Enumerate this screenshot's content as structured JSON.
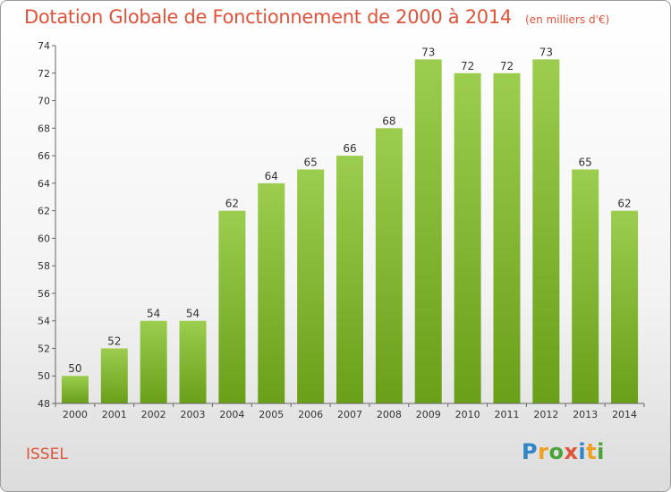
{
  "header": {
    "title": "Dotation Globale de Fonctionnement de 2000 à 2014",
    "unit": "(en milliers d'€)"
  },
  "footer": {
    "commune": "ISSEL",
    "logo_letters": [
      {
        "char": "P",
        "color": "#2e86c8"
      },
      {
        "char": "r",
        "color": "#f0a020"
      },
      {
        "char": "o",
        "color": "#4aa43a"
      },
      {
        "char": "x",
        "color": "#e0533a"
      },
      {
        "char": "i",
        "color": "#2e86c8"
      },
      {
        "char": "t",
        "color": "#f0a020"
      },
      {
        "char": "i",
        "color": "#4aa43a"
      }
    ]
  },
  "chart_data": {
    "type": "bar",
    "categories": [
      "2000",
      "2001",
      "2002",
      "2003",
      "2004",
      "2005",
      "2006",
      "2007",
      "2008",
      "2009",
      "2010",
      "2011",
      "2012",
      "2013",
      "2014"
    ],
    "values": [
      50,
      52,
      54,
      54,
      62,
      64,
      65,
      66,
      68,
      73,
      72,
      72,
      73,
      65,
      62
    ],
    "data_labels": [
      "50",
      "52",
      "54",
      "54",
      "62",
      "64",
      "65",
      "66",
      "68",
      "73",
      "72",
      "72",
      "73",
      "65",
      "62"
    ],
    "ylim": [
      48,
      74
    ],
    "yticks": [
      "48",
      "50",
      "52",
      "54",
      "56",
      "58",
      "60",
      "62",
      "64",
      "66",
      "68",
      "70",
      "72",
      "74"
    ],
    "grid": false,
    "bar_color_top": "#9ccd4f",
    "bar_color_bottom": "#6a9f18",
    "text_color": "#333333",
    "axis_color": "#666666"
  }
}
